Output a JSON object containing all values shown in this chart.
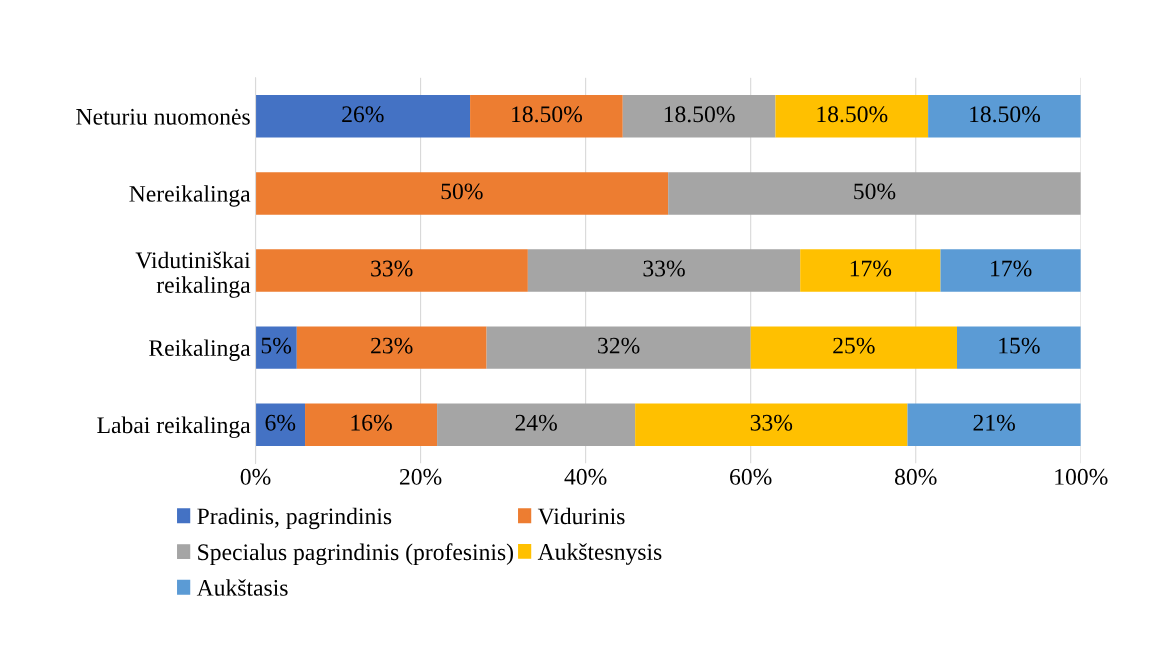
{
  "chart_data": {
    "type": "bar",
    "orientation": "horizontal",
    "stacked": true,
    "categories": [
      "Neturiu nuomonės",
      "Nereikalinga",
      "Vidutiniškai\nreikalinga",
      "Reikalinga",
      "Labai reikalinga"
    ],
    "series": [
      {
        "name": "Pradinis, pagrindinis",
        "color": "#4472c4",
        "values": [
          26,
          null,
          null,
          5,
          6
        ],
        "value_labels": [
          "26%",
          null,
          null,
          "5%",
          "6%"
        ]
      },
      {
        "name": "Vidurinis",
        "color": "#ed7d31",
        "values": [
          18.5,
          50,
          33,
          23,
          16
        ],
        "value_labels": [
          "18.50%",
          "50%",
          "33%",
          "23%",
          "16%"
        ]
      },
      {
        "name": "Specialus pagrindinis (profesinis)",
        "color": "#a5a5a5",
        "values": [
          18.5,
          50,
          33,
          32,
          24
        ],
        "value_labels": [
          "18.50%",
          "50%",
          "33%",
          "32%",
          "24%"
        ]
      },
      {
        "name": "Aukštesnysis",
        "color": "#ffc000",
        "values": [
          18.5,
          null,
          17,
          25,
          33
        ],
        "value_labels": [
          "18.50%",
          null,
          "17%",
          "25%",
          "33%"
        ]
      },
      {
        "name": "Aukštasis",
        "color": "#5b9bd5",
        "values": [
          18.5,
          null,
          17,
          15,
          21
        ],
        "value_labels": [
          "18.50%",
          null,
          "17%",
          "15%",
          "21%"
        ]
      }
    ],
    "xlim": [
      0,
      100
    ],
    "xticks": [
      {
        "value": 0,
        "label": "0%"
      },
      {
        "value": 20,
        "label": "20%"
      },
      {
        "value": 40,
        "label": "40%"
      },
      {
        "value": 60,
        "label": "60%"
      },
      {
        "value": 80,
        "label": "80%"
      },
      {
        "value": 100,
        "label": "100%"
      }
    ],
    "grid": "x",
    "legend": "bottom"
  }
}
